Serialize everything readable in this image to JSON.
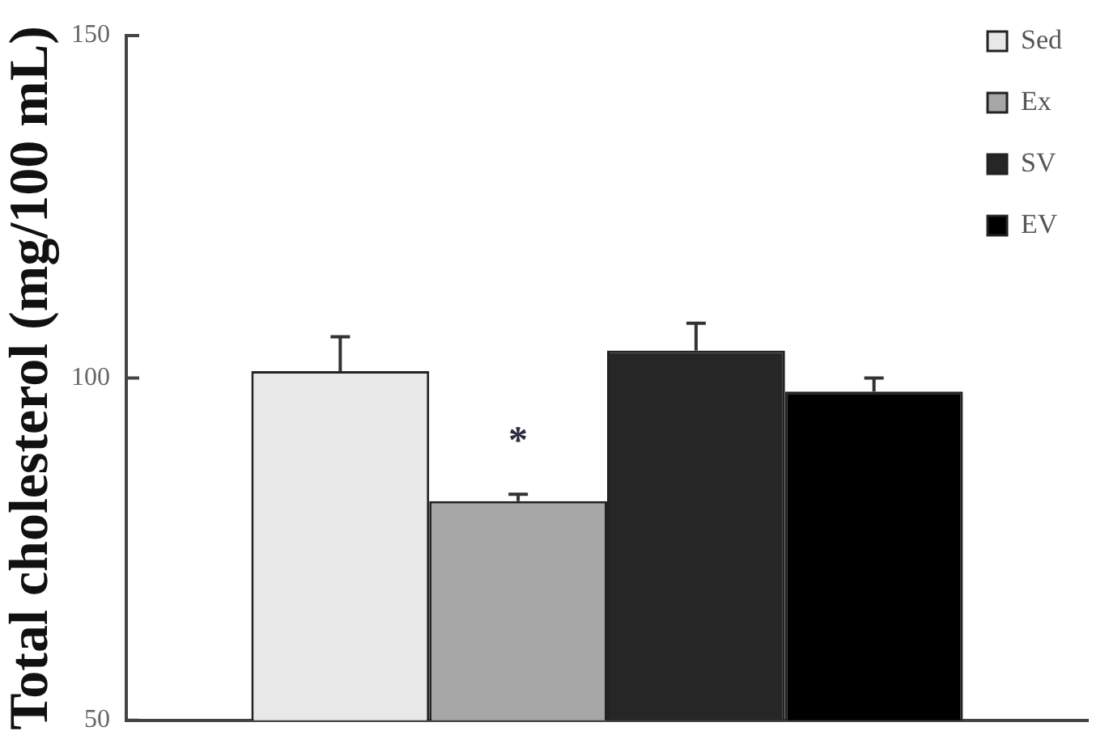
{
  "chart_data": {
    "type": "bar",
    "ylabel": "Total cholesterol (mg/100 mL)",
    "categories": [
      null
    ],
    "series": [
      {
        "name": "Sed",
        "color": "#e8e8e8",
        "values": [
          101
        ],
        "errors": [
          [
            101,
            106
          ]
        ]
      },
      {
        "name": "Ex",
        "color": "#a6a6a6",
        "values": [
          82
        ],
        "errors": [
          [
            82,
            83
          ]
        ]
      },
      {
        "name": "SV",
        "color": "#262626",
        "values": [
          104
        ],
        "errors": [
          [
            104,
            108
          ]
        ]
      },
      {
        "name": "EV",
        "color": "#000000",
        "values": [
          98
        ],
        "errors": [
          [
            98,
            100
          ]
        ]
      }
    ],
    "ylim": [
      50,
      150
    ],
    "yticks": [
      50,
      100,
      150
    ],
    "grid": false,
    "legend": "top right",
    "tick_labels": "y",
    "annotations": [
      "*"
    ]
  }
}
